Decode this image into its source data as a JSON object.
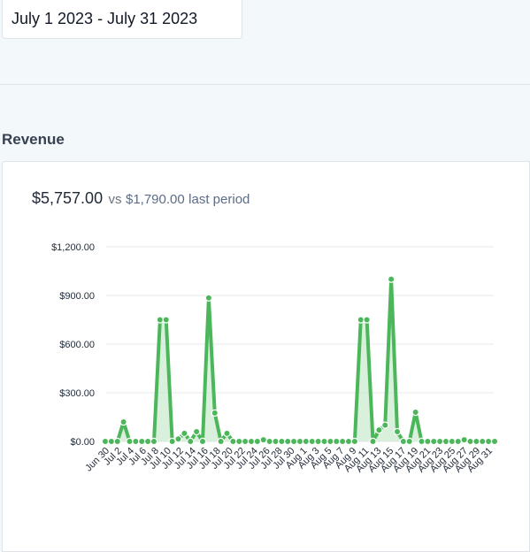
{
  "date_range": {
    "value": "July 1 2023 - July 31 2023"
  },
  "section": {
    "title": "Revenue"
  },
  "summary": {
    "current": "$5,757.00",
    "vs": "vs",
    "previous": "$1,790.00",
    "suffix": "last period"
  },
  "colors": {
    "line": "#4cb75a",
    "fill": "#bfe6c4",
    "grid": "#e6e9ee"
  },
  "chart_data": {
    "type": "area",
    "ylim": [
      0,
      1200
    ],
    "y_ticks": [
      "$0.00",
      "$300.00",
      "$600.00",
      "$900.00",
      "$1,200.00"
    ],
    "y_tick_values": [
      0,
      300,
      600,
      900,
      1200
    ],
    "x_tick_labels": [
      "Jun 30",
      "Jul 2",
      "Jul 4",
      "Jul 6",
      "Jul 8",
      "Jul 10",
      "Jul 12",
      "Jul 14",
      "Jul 16",
      "Jul 18",
      "Jul 20",
      "Jul 22",
      "Jul 24",
      "Jul 26",
      "Jul 28",
      "Jul 30",
      "Aug 1",
      "Aug 3",
      "Aug 5",
      "Aug 7",
      "Aug 9",
      "Aug 11",
      "Aug 13",
      "Aug 15",
      "Aug 17",
      "Aug 19",
      "Aug 21",
      "Aug 23",
      "Aug 25",
      "Aug 27",
      "Aug 29",
      "Aug 31"
    ],
    "series": [
      {
        "values": [
          0,
          0,
          0,
          120,
          0,
          0,
          0,
          0,
          0,
          750,
          750,
          0,
          15,
          50,
          0,
          60,
          0,
          885,
          175,
          0,
          50,
          0,
          0,
          0,
          0,
          0,
          10,
          0,
          0,
          0,
          0,
          0,
          0,
          0,
          0,
          0,
          0,
          0,
          0,
          0,
          0,
          0,
          750,
          750,
          0,
          70,
          100,
          1000,
          60,
          0,
          0,
          180,
          0,
          0,
          0,
          0,
          0,
          0,
          0,
          10,
          0,
          0,
          0,
          0,
          0
        ]
      }
    ]
  }
}
